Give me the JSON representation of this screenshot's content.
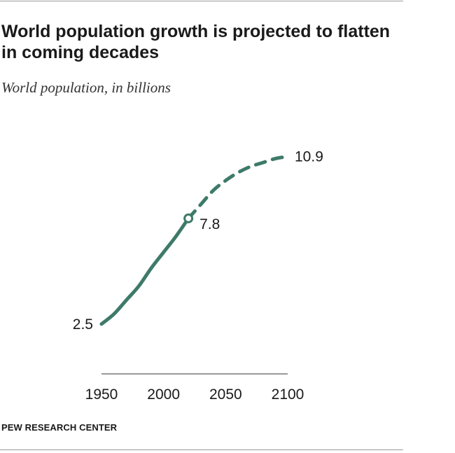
{
  "title": "World population growth is projected to flatten in coming decades",
  "subtitle": "World population, in billions",
  "source": "PEW RESEARCH CENTER",
  "colors": {
    "line": "#3e7a6a",
    "axis": "#9a9a9a",
    "text": "#1a1a1a"
  },
  "chart_data": {
    "type": "line",
    "title": "World population growth is projected to flatten in coming decades",
    "subtitle": "World population, in billions",
    "xlabel": "",
    "ylabel": "",
    "xlim": [
      1950,
      2100
    ],
    "ylim": [
      0,
      11
    ],
    "x_ticks": [
      "1950",
      "2000",
      "2050",
      "2100"
    ],
    "grid": false,
    "series": [
      {
        "style": "solid",
        "x": [
          1950,
          1960,
          1970,
          1980,
          1990,
          2000,
          2010,
          2020
        ],
        "y": [
          2.5,
          3.0,
          3.7,
          4.4,
          5.3,
          6.1,
          6.9,
          7.8
        ]
      },
      {
        "style": "dashed",
        "x": [
          2020,
          2030,
          2040,
          2050,
          2060,
          2070,
          2080,
          2090,
          2100
        ],
        "y": [
          7.8,
          8.5,
          9.2,
          9.7,
          10.1,
          10.4,
          10.6,
          10.8,
          10.9
        ]
      }
    ],
    "annotations": [
      {
        "x": 1950,
        "y": 2.5,
        "label": "2.5"
      },
      {
        "x": 2020,
        "y": 7.8,
        "label": "7.8",
        "marker": "open-circle"
      },
      {
        "x": 2100,
        "y": 10.9,
        "label": "10.9"
      }
    ]
  }
}
